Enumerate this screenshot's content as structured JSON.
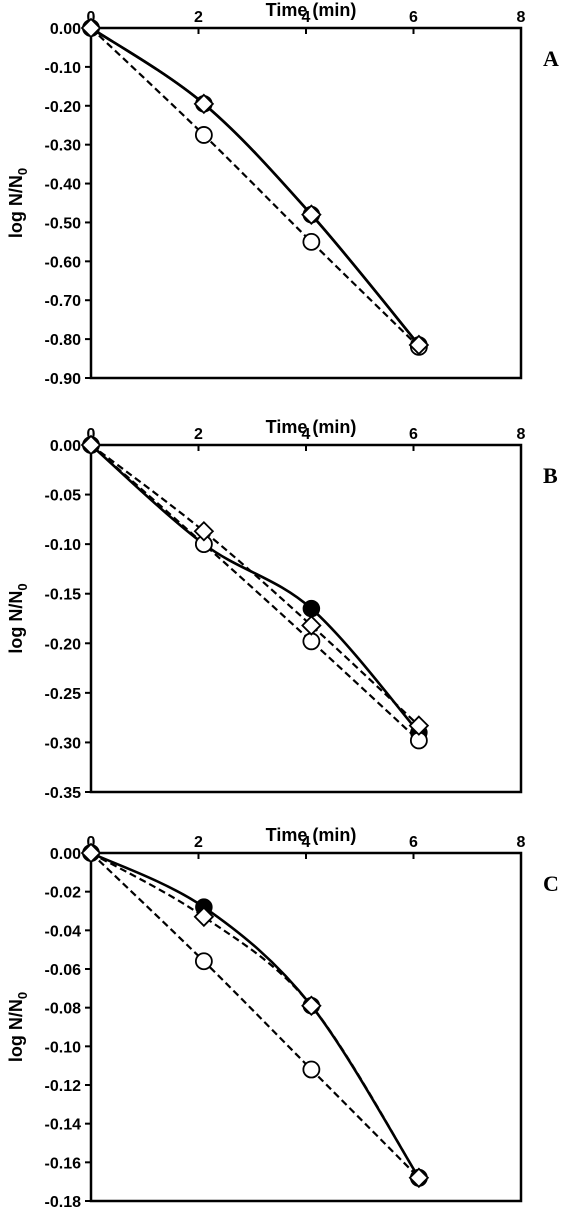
{
  "chart_data": [
    {
      "type": "line",
      "panel_label": "A",
      "xlabel": "Time (min)",
      "ylabel": "log N/N",
      "ylabel_sub": "0",
      "xlim": [
        0,
        8
      ],
      "ylim": [
        -0.9,
        0
      ],
      "xticks": [
        "0",
        "2",
        "4",
        "6",
        "8"
      ],
      "yticks": [
        "0.00",
        "-0.10",
        "-0.20",
        "-0.30",
        "-0.40",
        "-0.50",
        "-0.60",
        "-0.70",
        "-0.80",
        "-0.90"
      ],
      "x_axis_position": "top",
      "grid": false,
      "series": [
        {
          "marker": "filled-circle",
          "line": "solid",
          "x": [
            0,
            2.1,
            4.1,
            6.1
          ],
          "values": [
            0,
            -0.195,
            -0.48,
            -0.815
          ]
        },
        {
          "marker": "open-diamond",
          "line": "solid",
          "x": [
            0,
            2.1,
            4.1,
            6.1
          ],
          "values": [
            0,
            -0.195,
            -0.48,
            -0.815
          ]
        },
        {
          "marker": "open-circle",
          "line": "dashed",
          "x": [
            0,
            2.1,
            4.1,
            6.1
          ],
          "values": [
            0,
            -0.275,
            -0.55,
            -0.82
          ]
        }
      ]
    },
    {
      "type": "line",
      "panel_label": "B",
      "xlabel": "Time (min)",
      "ylabel": "log N/N",
      "ylabel_sub": "0",
      "xlim": [
        0,
        8
      ],
      "ylim": [
        -0.35,
        0
      ],
      "xticks": [
        "0",
        "2",
        "4",
        "6",
        "8"
      ],
      "yticks": [
        "0.00",
        "-0.05",
        "-0.10",
        "-0.15",
        "-0.20",
        "-0.25",
        "-0.30",
        "-0.35"
      ],
      "x_axis_position": "top",
      "grid": false,
      "series": [
        {
          "marker": "filled-circle",
          "line": "solid",
          "x": [
            0,
            2.1,
            4.1,
            6.1
          ],
          "values": [
            0,
            -0.1,
            -0.165,
            -0.29
          ]
        },
        {
          "marker": "open-diamond",
          "line": "dashed",
          "x": [
            0,
            2.1,
            4.1,
            6.1
          ],
          "values": [
            0,
            -0.087,
            -0.182,
            -0.283
          ]
        },
        {
          "marker": "open-circle",
          "line": "dashed",
          "x": [
            0,
            2.1,
            4.1,
            6.1
          ],
          "values": [
            0,
            -0.1,
            -0.198,
            -0.298
          ]
        }
      ]
    },
    {
      "type": "line",
      "panel_label": "C",
      "xlabel": "Time (min)",
      "ylabel": "log N/N",
      "ylabel_sub": "0",
      "xlim": [
        0,
        8
      ],
      "ylim": [
        -0.18,
        0
      ],
      "xticks": [
        "0",
        "2",
        "4",
        "6",
        "8"
      ],
      "yticks": [
        "0.00",
        "-0.02",
        "-0.04",
        "-0.06",
        "-0.08",
        "-0.10",
        "-0.12",
        "-0.14",
        "-0.16",
        "-0.18"
      ],
      "x_axis_position": "top",
      "grid": false,
      "series": [
        {
          "marker": "filled-circle",
          "line": "solid",
          "x": [
            0,
            2.1,
            4.1,
            6.1
          ],
          "values": [
            0,
            -0.028,
            -0.079,
            -0.168
          ]
        },
        {
          "marker": "open-diamond",
          "line": "dashed",
          "x": [
            0,
            2.1,
            4.1,
            6.1
          ],
          "values": [
            0,
            -0.033,
            -0.079,
            -0.168
          ]
        },
        {
          "marker": "open-circle",
          "line": "dashed",
          "x": [
            0,
            2.1,
            4.1,
            6.1
          ],
          "values": [
            0,
            -0.056,
            -0.112,
            -0.168
          ]
        }
      ]
    }
  ]
}
